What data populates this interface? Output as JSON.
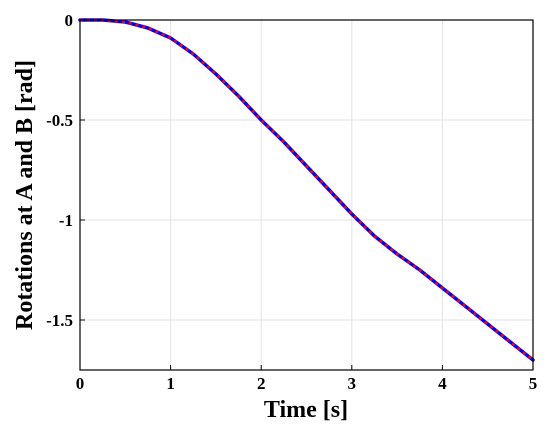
{
  "chart_data": {
    "type": "line",
    "title": "",
    "xlabel": "Time [s]",
    "ylabel": "Rotations at A and B [rad]",
    "xlim": [
      0,
      5
    ],
    "ylim": [
      -1.75,
      0
    ],
    "grid": true,
    "legend": "none",
    "xticks": [
      0,
      1,
      2,
      3,
      4,
      5
    ],
    "xtick_labels": [
      "0",
      "1",
      "2",
      "3",
      "4",
      "5"
    ],
    "yticks": [
      0,
      -0.5,
      -1,
      -1.5
    ],
    "ytick_labels": [
      "0",
      "-0.5",
      "-1",
      "-1.5"
    ],
    "series": [
      {
        "color": "#0000ff",
        "style": "solid",
        "x": [
          0,
          0.25,
          0.5,
          0.75,
          1,
          1.25,
          1.5,
          1.75,
          2,
          2.25,
          2.5,
          2.75,
          3,
          3.25,
          3.5,
          3.75,
          4,
          4.25,
          4.5,
          4.75,
          5
        ],
        "y": [
          0,
          0,
          -0.01,
          -0.04,
          -0.09,
          -0.17,
          -0.27,
          -0.38,
          -0.5,
          -0.61,
          -0.73,
          -0.85,
          -0.97,
          -1.08,
          -1.17,
          -1.25,
          -1.34,
          -1.43,
          -1.52,
          -1.61,
          -1.7
        ]
      },
      {
        "color": "#ff0000",
        "style": "dotted",
        "x": [
          0,
          0.25,
          0.5,
          0.75,
          1,
          1.25,
          1.5,
          1.75,
          2,
          2.25,
          2.5,
          2.75,
          3,
          3.25,
          3.5,
          3.75,
          4,
          4.25,
          4.5,
          4.75,
          5
        ],
        "y": [
          0,
          0,
          -0.01,
          -0.04,
          -0.09,
          -0.17,
          -0.27,
          -0.38,
          -0.5,
          -0.61,
          -0.73,
          -0.85,
          -0.97,
          -1.08,
          -1.17,
          -1.25,
          -1.34,
          -1.43,
          -1.52,
          -1.61,
          -1.7
        ]
      }
    ]
  }
}
